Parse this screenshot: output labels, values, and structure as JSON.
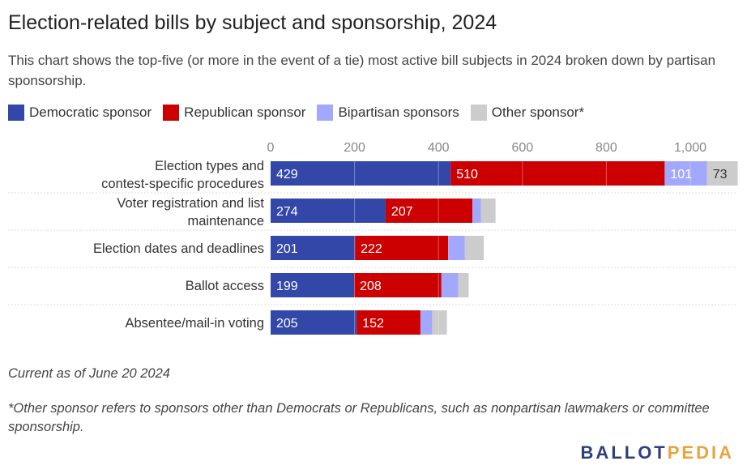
{
  "header": {
    "title": "Election-related bills by subject and sponsorship, 2024",
    "subtitle": "This chart shows the top-five (or more in the event of a tie) most active bill subjects in 2024 broken down by partisan sponsorship."
  },
  "footer": {
    "date_note": "Current as of June 20 2024",
    "footnote": "*Other sponsor refers to sponsors other than Democrats or Republicans, such as nonpartisan lawmakers or committee sponsorship.",
    "logo_part1": "BALLOT",
    "logo_part2": "PEDIA"
  },
  "colors": {
    "democratic": "#3347a8",
    "republican": "#cc0000",
    "bipartisan": "#a3a8ff",
    "other": "#cccccc"
  },
  "chart_data": {
    "type": "bar",
    "orientation": "horizontal",
    "stacked": true,
    "legend_placement": "top-left",
    "xlim": [
      0,
      1100
    ],
    "x_ticks": [
      {
        "value": 0,
        "label": "0"
      },
      {
        "value": 200,
        "label": "200"
      },
      {
        "value": 400,
        "label": "400"
      },
      {
        "value": 600,
        "label": "600"
      },
      {
        "value": 800,
        "label": "800"
      },
      {
        "value": 1000,
        "label": "1,000"
      }
    ],
    "categories": [
      "Election types and contest-specific procedures",
      "Voter registration and list maintenance",
      "Election dates and deadlines",
      "Ballot access",
      "Absentee/mail-in voting"
    ],
    "series": [
      {
        "name": "Democratic sponsor",
        "color": "#3347a8",
        "values": [
          429,
          274,
          201,
          199,
          205
        ],
        "labels": [
          "429",
          "274",
          "201",
          "199",
          "205"
        ]
      },
      {
        "name": "Republican sponsor",
        "color": "#cc0000",
        "values": [
          510,
          207,
          222,
          208,
          152
        ],
        "labels": [
          "510",
          "207",
          "222",
          "208",
          "152"
        ]
      },
      {
        "name": "Bipartisan sponsors",
        "color": "#a3a8ff",
        "values": [
          101,
          20,
          40,
          40,
          28
        ],
        "labels": [
          "101",
          "",
          "",
          "",
          ""
        ]
      },
      {
        "name": "Other sponsor*",
        "color": "#cccccc",
        "values": [
          73,
          35,
          45,
          25,
          35
        ],
        "labels": [
          "73",
          "",
          "",
          "",
          ""
        ]
      }
    ]
  }
}
